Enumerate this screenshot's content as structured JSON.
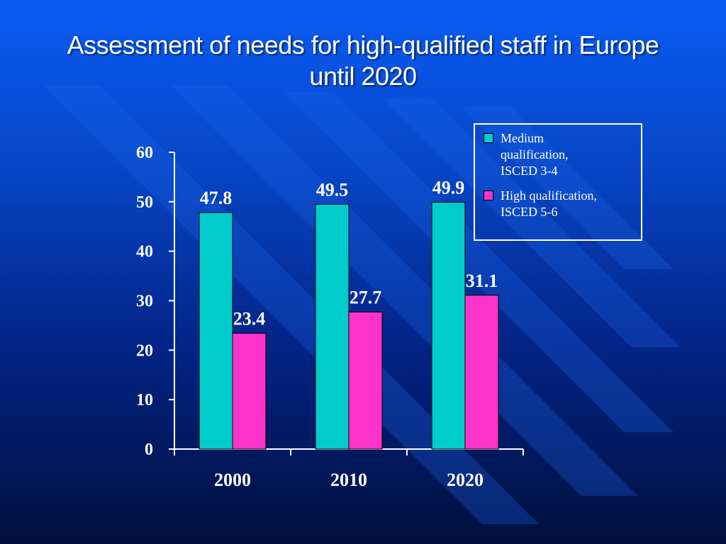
{
  "slide": {
    "title_line1": "Assessment of needs for high-qualified staff in Europe",
    "title_line2": "until 2020"
  },
  "chart_data": {
    "type": "bar",
    "title": "Assessment of needs for high-qualified staff in Europe until 2020",
    "categories": [
      "2000",
      "2010",
      "2020"
    ],
    "series": [
      {
        "name": "Medium qualification, ISCED 3-4",
        "values": [
          47.8,
          49.5,
          49.9
        ],
        "color": "#00cccc"
      },
      {
        "name": "High qualification, ISCED 5-6",
        "values": [
          23.4,
          27.7,
          31.1
        ],
        "color": "#ff33cc"
      }
    ],
    "ylim": [
      0,
      60
    ],
    "yticks": [
      0,
      10,
      20,
      30,
      40,
      50,
      60
    ],
    "ytick_labels": [
      "0",
      "10",
      "20",
      "30",
      "40",
      "50",
      "60"
    ],
    "data_labels": [
      [
        "47.8",
        "49.5",
        "49.9"
      ],
      [
        "23.4",
        "27.7",
        "31.1"
      ]
    ],
    "grid": false,
    "legend_position": "top-right",
    "xlabel": "",
    "ylabel": ""
  },
  "legend": {
    "medium_lines": [
      "Medium",
      "qualification,",
      "ISCED 3-4"
    ],
    "high_lines": [
      "High qualification,",
      "ISCED 5-6"
    ]
  },
  "colors": {
    "medium": "#00cccc",
    "high": "#ff33cc",
    "text": "#ffffff"
  }
}
